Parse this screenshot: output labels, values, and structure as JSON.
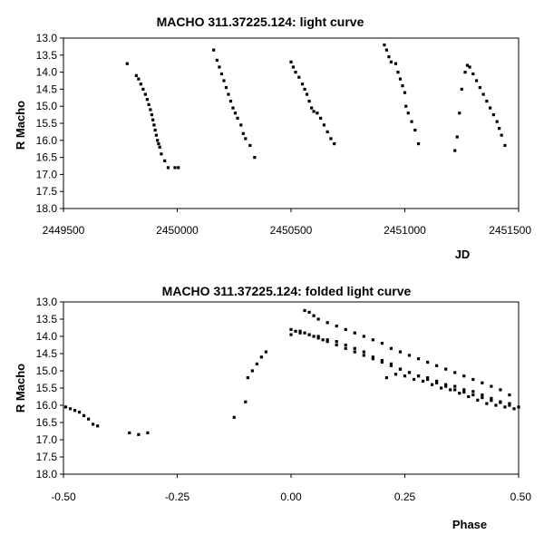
{
  "chart_data": [
    {
      "type": "scatter",
      "title": "MACHO 311.37225.124: light curve",
      "xlabel": "JD",
      "ylabel": "R Macho",
      "xlim": [
        2449500,
        2451500
      ],
      "ylim": [
        13.0,
        18.0
      ],
      "y_inverted": true,
      "x_ticks": [
        "2449500",
        "2450000",
        "2450500",
        "2451000",
        "2451500"
      ],
      "y_ticks": [
        "13.0",
        "13.5",
        "14.0",
        "14.5",
        "15.0",
        "15.5",
        "16.0",
        "16.5",
        "17.0",
        "17.5",
        "18.0"
      ],
      "grid": false,
      "points": [
        [
          2449780,
          13.75
        ],
        [
          2449820,
          14.1
        ],
        [
          2449830,
          14.2
        ],
        [
          2449840,
          14.35
        ],
        [
          2449850,
          14.5
        ],
        [
          2449860,
          14.65
        ],
        [
          2449868,
          14.8
        ],
        [
          2449875,
          14.95
        ],
        [
          2449882,
          15.1
        ],
        [
          2449888,
          15.25
        ],
        [
          2449893,
          15.4
        ],
        [
          2449898,
          15.55
        ],
        [
          2449903,
          15.7
        ],
        [
          2449908,
          15.85
        ],
        [
          2449913,
          16.0
        ],
        [
          2449918,
          16.1
        ],
        [
          2449923,
          16.2
        ],
        [
          2449930,
          16.4
        ],
        [
          2449945,
          16.6
        ],
        [
          2449960,
          16.8
        ],
        [
          2449990,
          16.8
        ],
        [
          2450005,
          16.8
        ],
        [
          2450160,
          13.35
        ],
        [
          2450175,
          13.65
        ],
        [
          2450185,
          13.85
        ],
        [
          2450195,
          14.05
        ],
        [
          2450205,
          14.25
        ],
        [
          2450215,
          14.45
        ],
        [
          2450225,
          14.65
        ],
        [
          2450235,
          14.85
        ],
        [
          2450245,
          15.05
        ],
        [
          2450255,
          15.2
        ],
        [
          2450265,
          15.35
        ],
        [
          2450280,
          15.55
        ],
        [
          2450290,
          15.8
        ],
        [
          2450300,
          15.95
        ],
        [
          2450320,
          16.15
        ],
        [
          2450340,
          16.5
        ],
        [
          2450500,
          13.7
        ],
        [
          2450510,
          13.85
        ],
        [
          2450520,
          14.0
        ],
        [
          2450535,
          14.15
        ],
        [
          2450550,
          14.35
        ],
        [
          2450560,
          14.5
        ],
        [
          2450570,
          14.65
        ],
        [
          2450580,
          14.85
        ],
        [
          2450590,
          15.05
        ],
        [
          2450600,
          15.15
        ],
        [
          2450615,
          15.2
        ],
        [
          2450630,
          15.35
        ],
        [
          2450645,
          15.55
        ],
        [
          2450660,
          15.75
        ],
        [
          2450675,
          15.95
        ],
        [
          2450690,
          16.1
        ],
        [
          2450910,
          13.2
        ],
        [
          2450920,
          13.35
        ],
        [
          2450930,
          13.55
        ],
        [
          2450940,
          13.7
        ],
        [
          2450960,
          13.75
        ],
        [
          2450970,
          14.0
        ],
        [
          2450980,
          14.2
        ],
        [
          2450990,
          14.4
        ],
        [
          2451000,
          14.6
        ],
        [
          2451005,
          15.0
        ],
        [
          2451015,
          15.2
        ],
        [
          2451030,
          15.45
        ],
        [
          2451045,
          15.7
        ],
        [
          2451060,
          16.1
        ],
        [
          2451220,
          16.3
        ],
        [
          2451230,
          15.9
        ],
        [
          2451240,
          15.2
        ],
        [
          2451250,
          14.5
        ],
        [
          2451265,
          14.0
        ],
        [
          2451275,
          13.8
        ],
        [
          2451285,
          13.85
        ],
        [
          2451300,
          14.05
        ],
        [
          2451315,
          14.25
        ],
        [
          2451330,
          14.45
        ],
        [
          2451345,
          14.65
        ],
        [
          2451360,
          14.85
        ],
        [
          2451375,
          15.05
        ],
        [
          2451390,
          15.25
        ],
        [
          2451405,
          15.45
        ],
        [
          2451415,
          15.65
        ],
        [
          2451425,
          15.85
        ],
        [
          2451440,
          16.15
        ]
      ]
    },
    {
      "type": "scatter",
      "title": "MACHO 311.37225.124: folded light curve",
      "xlabel": "Phase",
      "ylabel": "R Macho",
      "xlim": [
        -0.5,
        0.5
      ],
      "ylim": [
        13.0,
        18.0
      ],
      "y_inverted": true,
      "x_ticks": [
        "-0.50",
        "-0.25",
        "0.00",
        "0.25",
        "0.50"
      ],
      "y_ticks": [
        "13.0",
        "13.5",
        "14.0",
        "14.5",
        "15.0",
        "15.5",
        "16.0",
        "16.5",
        "17.0",
        "17.5",
        "18.0"
      ],
      "grid": false,
      "points": [
        [
          -0.495,
          16.05
        ],
        [
          -0.485,
          16.1
        ],
        [
          -0.475,
          16.15
        ],
        [
          -0.465,
          16.2
        ],
        [
          -0.455,
          16.3
        ],
        [
          -0.445,
          16.4
        ],
        [
          -0.435,
          16.55
        ],
        [
          -0.425,
          16.6
        ],
        [
          -0.355,
          16.8
        ],
        [
          -0.335,
          16.85
        ],
        [
          -0.315,
          16.8
        ],
        [
          -0.125,
          16.35
        ],
        [
          -0.1,
          15.9
        ],
        [
          -0.095,
          15.2
        ],
        [
          -0.085,
          15.0
        ],
        [
          -0.075,
          14.8
        ],
        [
          -0.065,
          14.6
        ],
        [
          -0.055,
          14.45
        ],
        [
          0.0,
          13.8
        ],
        [
          0.01,
          13.85
        ],
        [
          0.02,
          13.85
        ],
        [
          0.03,
          13.9
        ],
        [
          0.04,
          13.95
        ],
        [
          0.05,
          14.0
        ],
        [
          0.06,
          14.05
        ],
        [
          0.07,
          14.1
        ],
        [
          0.08,
          14.15
        ],
        [
          0.1,
          14.25
        ],
        [
          0.12,
          14.35
        ],
        [
          0.14,
          14.45
        ],
        [
          0.16,
          14.55
        ],
        [
          0.18,
          14.65
        ],
        [
          0.2,
          14.75
        ],
        [
          0.22,
          14.85
        ],
        [
          0.24,
          14.95
        ],
        [
          0.26,
          15.05
        ],
        [
          0.28,
          15.15
        ],
        [
          0.3,
          15.25
        ],
        [
          0.32,
          15.35
        ],
        [
          0.34,
          15.45
        ],
        [
          0.36,
          15.55
        ],
        [
          0.38,
          15.62
        ],
        [
          0.4,
          15.7
        ],
        [
          0.42,
          15.78
        ],
        [
          0.44,
          15.86
        ],
        [
          0.46,
          15.92
        ],
        [
          0.48,
          16.0
        ],
        [
          0.5,
          16.05
        ],
        [
          0.03,
          13.25
        ],
        [
          0.04,
          13.3
        ],
        [
          0.05,
          13.4
        ],
        [
          0.06,
          13.5
        ],
        [
          0.08,
          13.6
        ],
        [
          0.1,
          13.7
        ],
        [
          0.12,
          13.8
        ],
        [
          0.14,
          13.9
        ],
        [
          0.16,
          14.0
        ],
        [
          0.18,
          14.1
        ],
        [
          0.2,
          14.2
        ],
        [
          0.22,
          14.35
        ],
        [
          0.24,
          14.45
        ],
        [
          0.26,
          14.55
        ],
        [
          0.28,
          14.65
        ],
        [
          0.3,
          14.75
        ],
        [
          0.32,
          14.85
        ],
        [
          0.34,
          14.95
        ],
        [
          0.36,
          15.05
        ],
        [
          0.38,
          15.15
        ],
        [
          0.4,
          15.25
        ],
        [
          0.42,
          15.35
        ],
        [
          0.44,
          15.45
        ],
        [
          0.46,
          15.55
        ],
        [
          0.48,
          15.7
        ],
        [
          0.0,
          13.95
        ],
        [
          0.02,
          13.9
        ],
        [
          0.04,
          13.95
        ],
        [
          0.06,
          14.0
        ],
        [
          0.08,
          14.1
        ],
        [
          0.1,
          14.15
        ],
        [
          0.12,
          14.25
        ],
        [
          0.14,
          14.35
        ],
        [
          0.16,
          14.45
        ],
        [
          0.18,
          14.6
        ],
        [
          0.2,
          14.7
        ],
        [
          0.22,
          14.8
        ],
        [
          0.24,
          14.95
        ],
        [
          0.26,
          15.05
        ],
        [
          0.28,
          15.15
        ],
        [
          0.3,
          15.2
        ],
        [
          0.32,
          15.3
        ],
        [
          0.34,
          15.4
        ],
        [
          0.36,
          15.45
        ],
        [
          0.38,
          15.55
        ],
        [
          0.4,
          15.6
        ],
        [
          0.42,
          15.7
        ],
        [
          0.44,
          15.8
        ],
        [
          0.46,
          15.9
        ],
        [
          0.48,
          15.95
        ],
        [
          0.21,
          15.2
        ],
        [
          0.23,
          15.1
        ],
        [
          0.25,
          15.15
        ],
        [
          0.27,
          15.25
        ],
        [
          0.29,
          15.3
        ],
        [
          0.31,
          15.4
        ],
        [
          0.33,
          15.5
        ],
        [
          0.35,
          15.55
        ],
        [
          0.37,
          15.65
        ],
        [
          0.39,
          15.75
        ],
        [
          0.41,
          15.85
        ],
        [
          0.43,
          15.95
        ],
        [
          0.45,
          16.0
        ],
        [
          0.47,
          16.05
        ],
        [
          0.49,
          16.1
        ]
      ]
    }
  ]
}
